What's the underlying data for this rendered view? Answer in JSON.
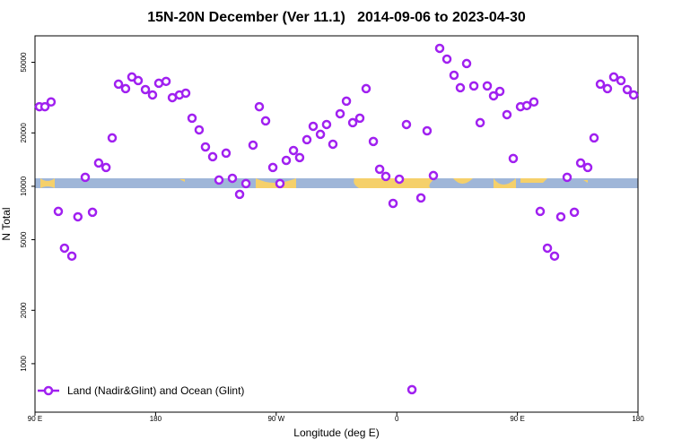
{
  "chart_data": {
    "type": "scatter",
    "title": "15N-20N December (Ver 11.1)   2014-09-06 to 2023-04-30",
    "x_label": "Longitude (deg E)",
    "y_label": "N Total",
    "log_y": true,
    "legend": "bottom-left",
    "xlim": [
      90,
      540
    ],
    "ylim": [
      533,
      70500
    ],
    "xticks": [
      {
        "value": 90,
        "label": "90 E"
      },
      180,
      {
        "value": 270,
        "label": "90 W"
      },
      {
        "value": 360,
        "label": "0"
      },
      {
        "value": 450,
        "label": "90 E"
      },
      {
        "value": 540,
        "label": "180"
      }
    ],
    "yticks": [
      1000,
      2000,
      5000,
      10000,
      20000,
      50000
    ],
    "x": [
      93.3,
      97.4,
      102,
      107.4,
      112,
      117.5,
      122,
      127.5,
      132.9,
      137.5,
      143,
      147.6,
      152.3,
      157.6,
      162.3,
      167,
      172.4,
      177.7,
      182.4,
      187.8,
      192.5,
      197.8,
      202.5,
      207.2,
      212.5,
      217.2,
      222.6,
      227.3,
      232.6,
      237.3,
      242.7,
      247.4,
      252.7,
      257.4,
      262.1,
      267.5,
      272.8,
      277.5,
      282.9,
      287.5,
      292.9,
      297.6,
      303,
      307.6,
      312.3,
      317.7,
      322.4,
      327.1,
      332.4,
      337.1,
      342.5,
      347.2,
      351.8,
      357.2,
      361.9,
      367.2,
      371.3,
      378,
      382.6,
      387.3,
      392,
      397.4,
      402.7,
      407.4,
      412.1,
      417.5,
      422.2,
      427.5,
      432.2,
      436.9,
      442.2,
      446.9,
      452.3,
      457,
      462.3,
      467,
      472.4,
      477.7,
      482.4,
      487.1,
      492.5,
      497.2,
      502.5,
      507.2,
      511.9,
      517.2,
      521.9,
      527.3,
      532,
      536.7
    ],
    "series": [
      {
        "name": "Land (Nadir&Glint) and Ocean (Glint)",
        "color": "#a020f0",
        "values": [
          28100,
          28100,
          29900,
          7220,
          4480,
          4040,
          6730,
          11240,
          7140,
          13530,
          12770,
          18740,
          37650,
          35530,
          41330,
          39450,
          35090,
          32730,
          38100,
          39030,
          31620,
          32730,
          33500,
          24210,
          20800,
          16670,
          14680,
          10850,
          15380,
          11100,
          9010,
          10360,
          17070,
          28100,
          23370,
          12770,
          10360,
          14000,
          15920,
          14520,
          18310,
          21790,
          19630,
          22300,
          17270,
          25640,
          30200,
          22840,
          24210,
          35530,
          17900,
          12480,
          11370,
          8010,
          10970,
          22300,
          714,
          8600,
          20550,
          11500,
          59950,
          52120,
          42270,
          35950,
          49200,
          36810,
          22840,
          36810,
          32360,
          34280,
          25350,
          14350,
          28100,
          28510,
          29900,
          7220,
          4480,
          4040,
          6730,
          11240,
          7140,
          13530,
          12770,
          18740,
          37650,
          35530,
          41330,
          39450,
          35090,
          32730
        ]
      }
    ]
  }
}
